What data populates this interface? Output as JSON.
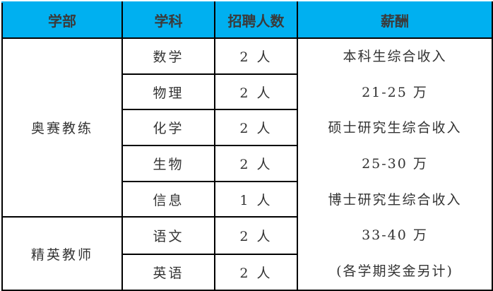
{
  "header_color": "#00b0f0",
  "headers": [
    "学部",
    "学科",
    "招聘人数",
    "薪酬"
  ],
  "departments": [
    {
      "name": "奥赛教练",
      "subjects": [
        {
          "subject": "数学",
          "count": "2 人"
        },
        {
          "subject": "物理",
          "count": "2 人"
        },
        {
          "subject": "化学",
          "count": "2 人"
        },
        {
          "subject": "生物",
          "count": "2 人"
        },
        {
          "subject": "信息",
          "count": "1 人"
        }
      ]
    },
    {
      "name": "精英教师",
      "subjects": [
        {
          "subject": "语文",
          "count": "2 人"
        },
        {
          "subject": "英语",
          "count": "2 人"
        }
      ]
    }
  ],
  "salary_lines": [
    "本科生综合收入",
    "21-25 万",
    "硕士研究生综合收入",
    "25-30 万",
    "博士研究生综合收入",
    "33-40 万",
    "(各学期奖金另计)"
  ]
}
